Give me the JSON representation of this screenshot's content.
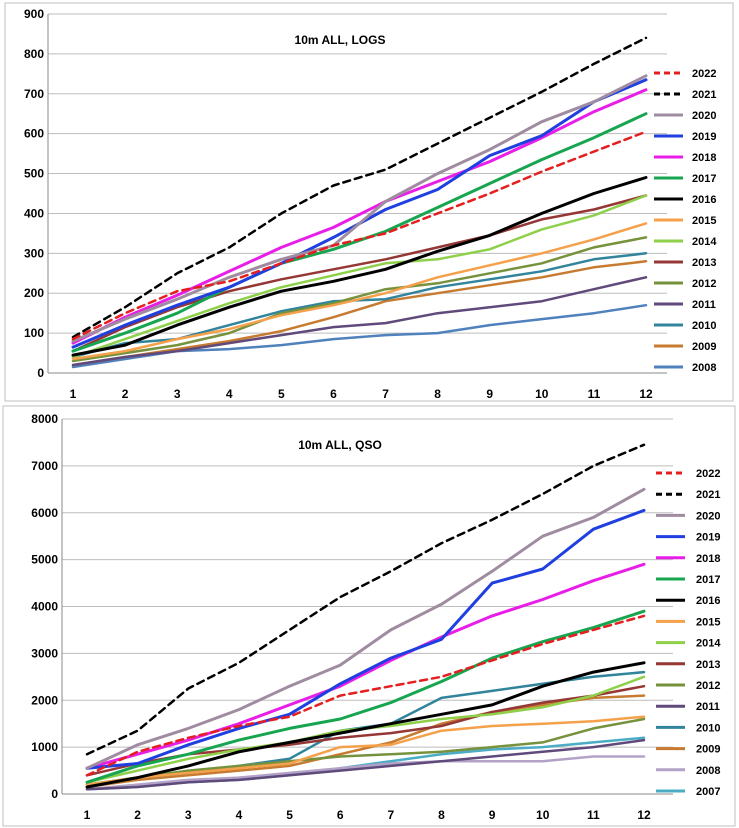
{
  "chart_data": [
    {
      "type": "line",
      "title": "10m ALL, LOGS",
      "xlabel": "",
      "ylabel": "",
      "x": [
        1,
        2,
        3,
        4,
        5,
        6,
        7,
        8,
        9,
        10,
        11,
        12
      ],
      "ylim": [
        0,
        900
      ],
      "yticks": [
        0,
        100,
        200,
        300,
        400,
        500,
        600,
        700,
        800,
        900
      ],
      "grid": true,
      "legend_position": "right",
      "series": [
        {
          "name": "2022",
          "color": "#e51f1f",
          "dash": "dashed",
          "values": [
            85,
            150,
            205,
            230,
            275,
            320,
            350,
            400,
            450,
            505,
            555,
            605
          ]
        },
        {
          "name": "2021",
          "color": "#000000",
          "dash": "dashed",
          "values": [
            90,
            165,
            250,
            315,
            400,
            470,
            510,
            575,
            640,
            705,
            775,
            840
          ]
        },
        {
          "name": "2020",
          "color": "#a08ca0",
          "dash": "solid",
          "values": [
            80,
            135,
            185,
            240,
            285,
            320,
            430,
            500,
            560,
            630,
            680,
            745
          ]
        },
        {
          "name": "2019",
          "color": "#1f3fe0",
          "dash": "solid",
          "values": [
            65,
            120,
            170,
            215,
            275,
            340,
            410,
            460,
            545,
            595,
            680,
            735
          ]
        },
        {
          "name": "2018",
          "color": "#e81ee8",
          "dash": "solid",
          "values": [
            75,
            140,
            195,
            255,
            315,
            365,
            430,
            480,
            530,
            590,
            655,
            710
          ]
        },
        {
          "name": "2017",
          "color": "#17a550",
          "dash": "solid",
          "values": [
            55,
            100,
            150,
            215,
            275,
            310,
            355,
            415,
            475,
            535,
            590,
            650
          ]
        },
        {
          "name": "2016",
          "color": "#000000",
          "dash": "solid",
          "values": [
            45,
            70,
            120,
            165,
            205,
            230,
            260,
            305,
            345,
            400,
            450,
            490
          ]
        },
        {
          "name": "2015",
          "color": "#f5a04a",
          "dash": "solid",
          "values": [
            35,
            55,
            85,
            110,
            145,
            170,
            200,
            240,
            270,
            300,
            335,
            375
          ]
        },
        {
          "name": "2014",
          "color": "#8ed04a",
          "dash": "solid",
          "values": [
            40,
            85,
            130,
            175,
            215,
            245,
            275,
            285,
            310,
            360,
            395,
            445
          ]
        },
        {
          "name": "2013",
          "color": "#953735",
          "dash": "solid",
          "values": [
            55,
            115,
            165,
            205,
            235,
            260,
            285,
            315,
            345,
            385,
            410,
            445
          ]
        },
        {
          "name": "2012",
          "color": "#76923c",
          "dash": "solid",
          "values": [
            30,
            50,
            70,
            100,
            150,
            175,
            210,
            225,
            250,
            275,
            315,
            340
          ]
        },
        {
          "name": "2011",
          "color": "#604a7b",
          "dash": "solid",
          "values": [
            20,
            40,
            55,
            75,
            95,
            115,
            125,
            150,
            165,
            180,
            210,
            240
          ]
        },
        {
          "name": "2010",
          "color": "#31849b",
          "dash": "solid",
          "values": [
            40,
            75,
            85,
            120,
            155,
            180,
            185,
            215,
            235,
            255,
            285,
            300
          ]
        },
        {
          "name": "2009",
          "color": "#c77b30",
          "dash": "solid",
          "values": [
            20,
            40,
            60,
            80,
            105,
            140,
            180,
            200,
            220,
            240,
            265,
            280
          ]
        },
        {
          "name": "2008",
          "color": "#4f81bd",
          "dash": "solid",
          "values": [
            15,
            35,
            55,
            60,
            70,
            85,
            95,
            100,
            120,
            135,
            150,
            170
          ]
        }
      ]
    },
    {
      "type": "line",
      "title": "10m ALL, QSO",
      "xlabel": "",
      "ylabel": "",
      "x": [
        1,
        2,
        3,
        4,
        5,
        6,
        7,
        8,
        9,
        10,
        11,
        12
      ],
      "ylim": [
        0,
        8000
      ],
      "yticks": [
        0,
        1000,
        2000,
        3000,
        4000,
        5000,
        6000,
        7000,
        8000
      ],
      "grid": true,
      "legend_position": "right",
      "series": [
        {
          "name": "2022",
          "color": "#e51f1f",
          "dash": "dashed",
          "values": [
            400,
            900,
            1200,
            1450,
            1650,
            2100,
            2300,
            2500,
            2850,
            3200,
            3500,
            3800
          ]
        },
        {
          "name": "2021",
          "color": "#000000",
          "dash": "dashed",
          "values": [
            850,
            1350,
            2250,
            2800,
            3500,
            4200,
            4750,
            5350,
            5850,
            6400,
            7000,
            7450
          ]
        },
        {
          "name": "2020",
          "color": "#a08ca0",
          "dash": "solid",
          "values": [
            550,
            1050,
            1400,
            1800,
            2300,
            2750,
            3500,
            4050,
            4750,
            5500,
            5900,
            6500
          ]
        },
        {
          "name": "2019",
          "color": "#1f3fe0",
          "dash": "solid",
          "values": [
            550,
            650,
            1050,
            1400,
            1700,
            2350,
            2900,
            3300,
            4500,
            4800,
            5650,
            6050
          ]
        },
        {
          "name": "2018",
          "color": "#e81ee8",
          "dash": "solid",
          "values": [
            550,
            850,
            1150,
            1500,
            1900,
            2300,
            2850,
            3350,
            3800,
            4150,
            4550,
            4900
          ]
        },
        {
          "name": "2017",
          "color": "#17a550",
          "dash": "solid",
          "values": [
            250,
            600,
            850,
            1150,
            1400,
            1600,
            1950,
            2400,
            2900,
            3250,
            3550,
            3900
          ]
        },
        {
          "name": "2016",
          "color": "#000000",
          "dash": "solid",
          "values": [
            150,
            350,
            600,
            900,
            1100,
            1300,
            1500,
            1700,
            1900,
            2300,
            2600,
            2800
          ]
        },
        {
          "name": "2015",
          "color": "#f5a04a",
          "dash": "solid",
          "values": [
            200,
            350,
            450,
            550,
            650,
            1000,
            1050,
            1350,
            1450,
            1500,
            1550,
            1650
          ]
        },
        {
          "name": "2014",
          "color": "#8ed04a",
          "dash": "solid",
          "values": [
            250,
            500,
            750,
            950,
            1100,
            1350,
            1450,
            1600,
            1700,
            1850,
            2100,
            2500
          ]
        },
        {
          "name": "2013",
          "color": "#953735",
          "dash": "solid",
          "values": [
            400,
            650,
            850,
            950,
            1050,
            1200,
            1300,
            1450,
            1750,
            1950,
            2100,
            2300
          ]
        },
        {
          "name": "2012",
          "color": "#76923c",
          "dash": "solid",
          "values": [
            200,
            350,
            500,
            600,
            700,
            800,
            850,
            900,
            1000,
            1100,
            1400,
            1600
          ]
        },
        {
          "name": "2011",
          "color": "#604a7b",
          "dash": "solid",
          "values": [
            100,
            150,
            250,
            300,
            400,
            500,
            600,
            700,
            800,
            900,
            1000,
            1150
          ]
        },
        {
          "name": "2010",
          "color": "#31849b",
          "dash": "solid",
          "values": [
            200,
            350,
            450,
            600,
            750,
            1350,
            1500,
            2050,
            2200,
            2350,
            2500,
            2600
          ]
        },
        {
          "name": "2009",
          "color": "#c77b30",
          "dash": "solid",
          "values": [
            150,
            300,
            400,
            500,
            600,
            850,
            1100,
            1500,
            1750,
            1900,
            2050,
            2100
          ]
        },
        {
          "name": "2008",
          "color": "#b3a2c7",
          "dash": "solid",
          "values": [
            100,
            200,
            300,
            350,
            450,
            550,
            650,
            700,
            700,
            700,
            800,
            800
          ]
        },
        {
          "name": "2007",
          "color": "#4bacc6",
          "dash": "solid",
          "values": [
            100,
            150,
            250,
            300,
            400,
            550,
            700,
            850,
            950,
            1000,
            1100,
            1200
          ]
        }
      ]
    }
  ]
}
